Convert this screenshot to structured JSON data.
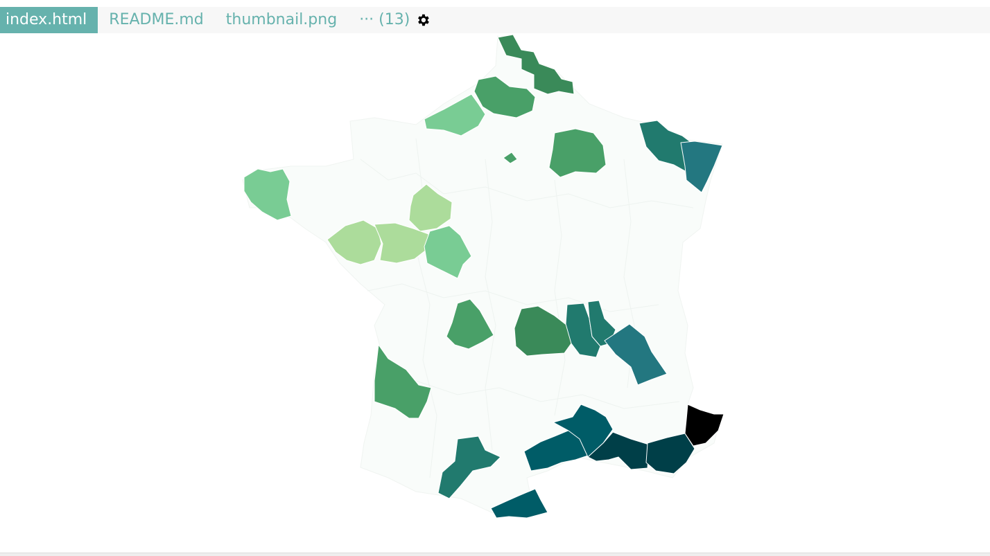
{
  "tabs": [
    {
      "label": "index.html",
      "active": true
    },
    {
      "label": "README.md",
      "active": false
    },
    {
      "label": "thumbnail.png",
      "active": false
    }
  ],
  "more_tab": {
    "label": "··· (13)"
  },
  "settings": {
    "icon": "gear-icon"
  },
  "colors": {
    "tab_active_bg": "#66b2ad",
    "tab_text": "#66b2ad",
    "tabbar_bg": "#f7f7f7",
    "map_base": "#f9fcfa",
    "scale": [
      "#acdc9b",
      "#79cc94",
      "#49a068",
      "#3a8a59",
      "#217a6e",
      "#237780",
      "#005c67",
      "#003f48",
      "#000000"
    ]
  }
}
